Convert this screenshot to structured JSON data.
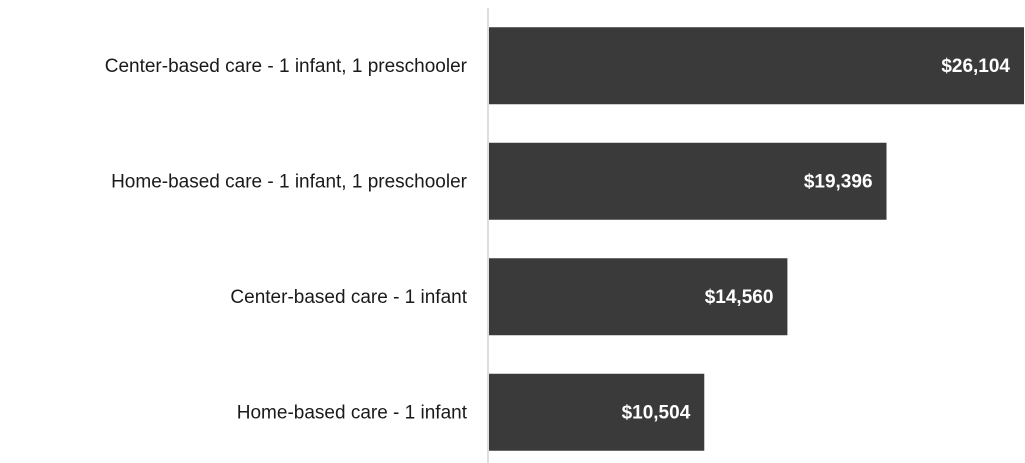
{
  "chart_data": {
    "type": "bar",
    "orientation": "horizontal",
    "categories": [
      "Center-based care - 1 infant, 1 preschooler",
      "Home-based care - 1 infant, 1 preschooler",
      "Center-based care - 1 infant",
      "Home-based care - 1 infant"
    ],
    "values": [
      26104,
      19396,
      14560,
      10504
    ],
    "value_labels": [
      "$26,104",
      "$19,396",
      "$14,560",
      "$10,504"
    ],
    "color": "#3b3a3a"
  }
}
